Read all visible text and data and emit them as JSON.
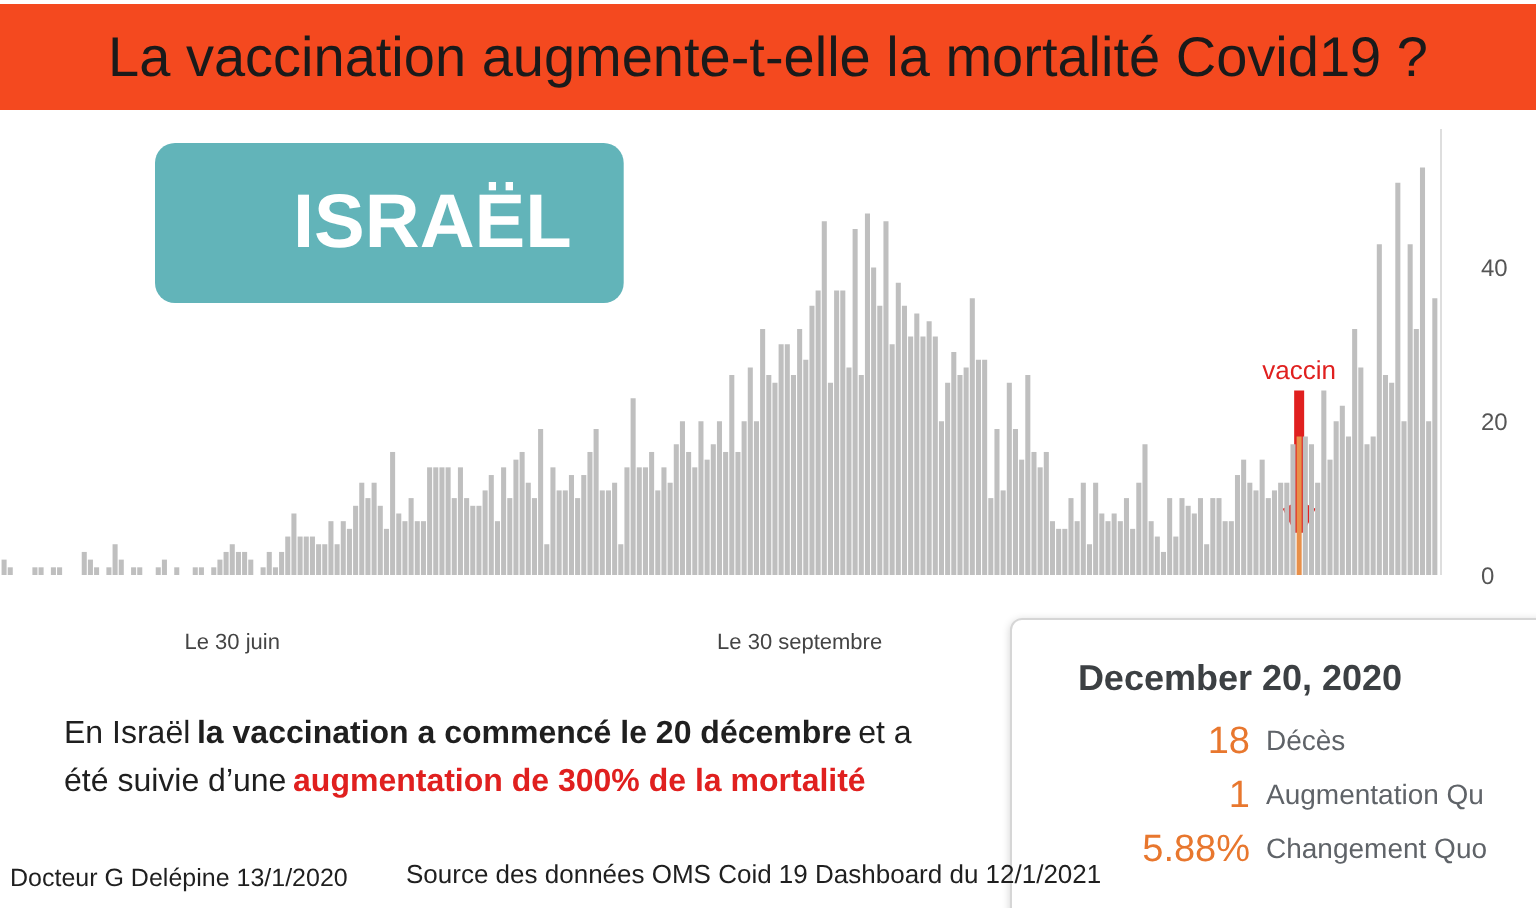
{
  "chart_data": {
    "type": "bar",
    "title": "La vaccination augmente-t-elle la mortalité Covid19 ?",
    "subtitle": "ISRAËL",
    "annotations": [
      {
        "text": "vaccin",
        "x": "2020-12-20",
        "y": 18
      },
      "En Israël",
      "la vaccination a commencé le 20 décembre",
      "et a",
      "été suivie d’une",
      "augmentation de 300% de la mortalité",
      "December 20, 2020",
      "18",
      "Décès",
      "1",
      "Augmentation Qu",
      "5.88%",
      "Changement Quo",
      "Docteur G Delépine 13/1/2020",
      "Source des données OMS Coid 19 Dashboard du 12/1/2021"
    ],
    "x": [
      "2020-05-24",
      "2020-05-25",
      "2020-05-26",
      "2020-05-27",
      "2020-05-28",
      "2020-05-29",
      "2020-05-30",
      "2020-05-31",
      "2020-06-01",
      "2020-06-02",
      "2020-06-03",
      "2020-06-04",
      "2020-06-05",
      "2020-06-06",
      "2020-06-07",
      "2020-06-08",
      "2020-06-09",
      "2020-06-10",
      "2020-06-11",
      "2020-06-12",
      "2020-06-13",
      "2020-06-14",
      "2020-06-15",
      "2020-06-16",
      "2020-06-17",
      "2020-06-18",
      "2020-06-19",
      "2020-06-20",
      "2020-06-21",
      "2020-06-22",
      "2020-06-23",
      "2020-06-24",
      "2020-06-25",
      "2020-06-26",
      "2020-06-27",
      "2020-06-28",
      "2020-06-29",
      "2020-06-30",
      "2020-07-01",
      "2020-07-02",
      "2020-07-03",
      "2020-07-04",
      "2020-07-05",
      "2020-07-06",
      "2020-07-07",
      "2020-07-08",
      "2020-07-09",
      "2020-07-10",
      "2020-07-11",
      "2020-07-12",
      "2020-07-13",
      "2020-07-14",
      "2020-07-15",
      "2020-07-16",
      "2020-07-17",
      "2020-07-18",
      "2020-07-19",
      "2020-07-20",
      "2020-07-21",
      "2020-07-22",
      "2020-07-23",
      "2020-07-24",
      "2020-07-25",
      "2020-07-26",
      "2020-07-27",
      "2020-07-28",
      "2020-07-29",
      "2020-07-30",
      "2020-07-31",
      "2020-08-01",
      "2020-08-02",
      "2020-08-03",
      "2020-08-04",
      "2020-08-05",
      "2020-08-06",
      "2020-08-07",
      "2020-08-08",
      "2020-08-09",
      "2020-08-10",
      "2020-08-11",
      "2020-08-12",
      "2020-08-13",
      "2020-08-14",
      "2020-08-15",
      "2020-08-16",
      "2020-08-17",
      "2020-08-18",
      "2020-08-19",
      "2020-08-20",
      "2020-08-21",
      "2020-08-22",
      "2020-08-23",
      "2020-08-24",
      "2020-08-25",
      "2020-08-26",
      "2020-08-27",
      "2020-08-28",
      "2020-08-29",
      "2020-08-30",
      "2020-08-31",
      "2020-09-01",
      "2020-09-02",
      "2020-09-03",
      "2020-09-04",
      "2020-09-05",
      "2020-09-06",
      "2020-09-07",
      "2020-09-08",
      "2020-09-09",
      "2020-09-10",
      "2020-09-11",
      "2020-09-12",
      "2020-09-13",
      "2020-09-14",
      "2020-09-15",
      "2020-09-16",
      "2020-09-17",
      "2020-09-18",
      "2020-09-19",
      "2020-09-20",
      "2020-09-21",
      "2020-09-22",
      "2020-09-23",
      "2020-09-24",
      "2020-09-25",
      "2020-09-26",
      "2020-09-27",
      "2020-09-28",
      "2020-09-29",
      "2020-09-30",
      "2020-10-01",
      "2020-10-02",
      "2020-10-03",
      "2020-10-04",
      "2020-10-05",
      "2020-10-06",
      "2020-10-07",
      "2020-10-08",
      "2020-10-09",
      "2020-10-10",
      "2020-10-11",
      "2020-10-12",
      "2020-10-13",
      "2020-10-14",
      "2020-10-15",
      "2020-10-16",
      "2020-10-17",
      "2020-10-18",
      "2020-10-19",
      "2020-10-20",
      "2020-10-21",
      "2020-10-22",
      "2020-10-23",
      "2020-10-24",
      "2020-10-25",
      "2020-10-26",
      "2020-10-27",
      "2020-10-28",
      "2020-10-29",
      "2020-10-30",
      "2020-10-31",
      "2020-11-01",
      "2020-11-02",
      "2020-11-03",
      "2020-11-04",
      "2020-11-05",
      "2020-11-06",
      "2020-11-07",
      "2020-11-08",
      "2020-11-09",
      "2020-11-10",
      "2020-11-11",
      "2020-11-12",
      "2020-11-13",
      "2020-11-14",
      "2020-11-15",
      "2020-11-16",
      "2020-11-17",
      "2020-11-18",
      "2020-11-19",
      "2020-11-20",
      "2020-11-21",
      "2020-11-22",
      "2020-11-23",
      "2020-11-24",
      "2020-11-25",
      "2020-11-26",
      "2020-11-27",
      "2020-11-28",
      "2020-11-29",
      "2020-11-30",
      "2020-12-01",
      "2020-12-02",
      "2020-12-03",
      "2020-12-04",
      "2020-12-05",
      "2020-12-06",
      "2020-12-07",
      "2020-12-08",
      "2020-12-09",
      "2020-12-10",
      "2020-12-11",
      "2020-12-12",
      "2020-12-13",
      "2020-12-14",
      "2020-12-15",
      "2020-12-16",
      "2020-12-17",
      "2020-12-18",
      "2020-12-19",
      "2020-12-20",
      "2020-12-21",
      "2020-12-22",
      "2020-12-23",
      "2020-12-24",
      "2020-12-25",
      "2020-12-26",
      "2020-12-27",
      "2020-12-28",
      "2020-12-29",
      "2020-12-30",
      "2020-12-31",
      "2021-01-01",
      "2021-01-02",
      "2021-01-03",
      "2021-01-04",
      "2021-01-05",
      "2021-01-06",
      "2021-01-07",
      "2021-01-08",
      "2021-01-09",
      "2021-01-10",
      "2021-01-11"
    ],
    "values": [
      2,
      1,
      0,
      0,
      0,
      1,
      1,
      0,
      1,
      1,
      0,
      0,
      0,
      3,
      2,
      1,
      0,
      1,
      4,
      2,
      0,
      1,
      1,
      0,
      0,
      1,
      2,
      0,
      1,
      0,
      0,
      1,
      1,
      0,
      1,
      2,
      3,
      4,
      3,
      3,
      2,
      0,
      1,
      3,
      1,
      3,
      5,
      8,
      5,
      5,
      5,
      4,
      4,
      7,
      4,
      7,
      6,
      9,
      12,
      10,
      12,
      9,
      6,
      16,
      8,
      7,
      10,
      7,
      7,
      14,
      14,
      14,
      14,
      10,
      14,
      10,
      9,
      9,
      11,
      13,
      7,
      14,
      10,
      15,
      16,
      12,
      10,
      19,
      4,
      14,
      11,
      11,
      13,
      10,
      13,
      16,
      19,
      11,
      11,
      12,
      4,
      14,
      23,
      14,
      14,
      16,
      11,
      14,
      12,
      17,
      20,
      16,
      14,
      20,
      15,
      17,
      20,
      16,
      26,
      16,
      20,
      27,
      20,
      32,
      26,
      25,
      30,
      30,
      26,
      32,
      28,
      35,
      37,
      46,
      25,
      37,
      37,
      27,
      45,
      26,
      47,
      40,
      35,
      46,
      30,
      38,
      35,
      31,
      34,
      31,
      33,
      31,
      20,
      25,
      29,
      26,
      27,
      36,
      28,
      28,
      10,
      19,
      11,
      25,
      19,
      15,
      26,
      16,
      14,
      16,
      7,
      6,
      6,
      10,
      7,
      12,
      4,
      12,
      8,
      7,
      8,
      7,
      10,
      6,
      12,
      17,
      7,
      5,
      3,
      10,
      5,
      10,
      9,
      8,
      10,
      4,
      10,
      10,
      7,
      7,
      13,
      15,
      12,
      11,
      15,
      10,
      11,
      12,
      12,
      17,
      18,
      18,
      17,
      12,
      24,
      15,
      20,
      22,
      18,
      32,
      27,
      17,
      18,
      43,
      26,
      25,
      51,
      20,
      43,
      32,
      53,
      20,
      36
    ],
    "colors": [
      "#bfbfbf",
      "#bfbfbf",
      "#bfbfbf",
      "#bfbfbf",
      "#bfbfbf",
      "#bfbfbf",
      "#bfbfbf",
      "#bfbfbf",
      "#bfbfbf",
      "#bfbfbf",
      "#bfbfbf",
      "#bfbfbf",
      "#bfbfbf",
      "#bfbfbf",
      "#bfbfbf",
      "#bfbfbf",
      "#bfbfbf",
      "#bfbfbf",
      "#bfbfbf",
      "#bfbfbf",
      "#bfbfbf",
      "#bfbfbf",
      "#bfbfbf",
      "#bfbfbf",
      "#bfbfbf",
      "#bfbfbf",
      "#bfbfbf",
      "#bfbfbf",
      "#bfbfbf",
      "#bfbfbf",
      "#bfbfbf",
      "#bfbfbf",
      "#bfbfbf",
      "#bfbfbf",
      "#bfbfbf",
      "#bfbfbf",
      "#bfbfbf",
      "#bfbfbf",
      "#bfbfbf",
      "#bfbfbf",
      "#bfbfbf",
      "#bfbfbf",
      "#bfbfbf",
      "#bfbfbf",
      "#bfbfbf",
      "#bfbfbf",
      "#bfbfbf",
      "#bfbfbf",
      "#bfbfbf",
      "#bfbfbf",
      "#bfbfbf",
      "#bfbfbf",
      "#bfbfbf",
      "#bfbfbf",
      "#bfbfbf",
      "#bfbfbf",
      "#bfbfbf",
      "#bfbfbf",
      "#bfbfbf",
      "#bfbfbf",
      "#bfbfbf",
      "#bfbfbf",
      "#bfbfbf",
      "#bfbfbf",
      "#bfbfbf",
      "#bfbfbf",
      "#bfbfbf",
      "#bfbfbf",
      "#bfbfbf",
      "#bfbfbf",
      "#bfbfbf",
      "#bfbfbf",
      "#bfbfbf",
      "#bfbfbf",
      "#bfbfbf",
      "#bfbfbf",
      "#bfbfbf",
      "#bfbfbf",
      "#bfbfbf",
      "#bfbfbf",
      "#bfbfbf",
      "#bfbfbf",
      "#bfbfbf",
      "#bfbfbf",
      "#bfbfbf",
      "#bfbfbf",
      "#bfbfbf",
      "#bfbfbf",
      "#bfbfbf",
      "#bfbfbf",
      "#bfbfbf",
      "#bfbfbf",
      "#bfbfbf",
      "#bfbfbf",
      "#bfbfbf",
      "#bfbfbf",
      "#bfbfbf",
      "#bfbfbf",
      "#bfbfbf",
      "#bfbfbf",
      "#bfbfbf",
      "#bfbfbf",
      "#bfbfbf",
      "#bfbfbf",
      "#bfbfbf",
      "#bfbfbf",
      "#bfbfbf",
      "#bfbfbf",
      "#bfbfbf",
      "#bfbfbf",
      "#bfbfbf",
      "#bfbfbf",
      "#bfbfbf",
      "#bfbfbf",
      "#bfbfbf",
      "#bfbfbf",
      "#bfbfbf",
      "#bfbfbf",
      "#bfbfbf",
      "#bfbfbf",
      "#bfbfbf",
      "#bfbfbf",
      "#bfbfbf",
      "#bfbfbf",
      "#bfbfbf",
      "#bfbfbf",
      "#bfbfbf",
      "#bfbfbf",
      "#bfbfbf",
      "#bfbfbf",
      "#bfbfbf",
      "#bfbfbf",
      "#bfbfbf",
      "#bfbfbf",
      "#bfbfbf",
      "#bfbfbf",
      "#bfbfbf",
      "#bfbfbf",
      "#bfbfbf",
      "#bfbfbf",
      "#bfbfbf",
      "#bfbfbf",
      "#bfbfbf",
      "#bfbfbf",
      "#bfbfbf",
      "#bfbfbf",
      "#bfbfbf",
      "#bfbfbf",
      "#bfbfbf",
      "#bfbfbf",
      "#bfbfbf",
      "#bfbfbf",
      "#bfbfbf",
      "#bfbfbf",
      "#bfbfbf",
      "#bfbfbf",
      "#bfbfbf",
      "#bfbfbf",
      "#bfbfbf",
      "#bfbfbf",
      "#bfbfbf",
      "#bfbfbf",
      "#bfbfbf",
      "#bfbfbf",
      "#bfbfbf",
      "#bfbfbf",
      "#bfbfbf",
      "#bfbfbf",
      "#bfbfbf",
      "#bfbfbf",
      "#bfbfbf",
      "#bfbfbf",
      "#bfbfbf",
      "#bfbfbf",
      "#bfbfbf",
      "#bfbfbf",
      "#bfbfbf",
      "#bfbfbf",
      "#bfbfbf",
      "#bfbfbf",
      "#bfbfbf",
      "#bfbfbf",
      "#bfbfbf",
      "#bfbfbf",
      "#bfbfbf",
      "#bfbfbf",
      "#bfbfbf",
      "#bfbfbf",
      "#bfbfbf",
      "#bfbfbf",
      "#bfbfbf",
      "#bfbfbf",
      "#bfbfbf",
      "#bfbfbf",
      "#bfbfbf",
      "#bfbfbf",
      "#bfbfbf",
      "#bfbfbf",
      "#bfbfbf",
      "#bfbfbf",
      "#bfbfbf",
      "#bfbfbf",
      "#bfbfbf",
      "#bfbfbf",
      "#bfbfbf",
      "#bfbfbf",
      "#bfbfbf",
      "#bfbfbf",
      "#bfbfbf",
      "#bfbfbf",
      "#e8904a",
      "#bfbfbf",
      "#bfbfbf",
      "#bfbfbf",
      "#bfbfbf",
      "#bfbfbf",
      "#bfbfbf",
      "#bfbfbf",
      "#bfbfbf",
      "#bfbfbf",
      "#bfbfbf",
      "#bfbfbf",
      "#bfbfbf",
      "#bfbfbf",
      "#bfbfbf",
      "#bfbfbf",
      "#bfbfbf",
      "#bfbfbf",
      "#bfbfbf",
      "#bfbfbf",
      "#bfbfbf",
      "#bfbfbf",
      "#bfbfbf"
    ],
    "xlim": [
      "2020-05-23T12:00",
      "2021-01-12"
    ],
    "xticks": [
      {
        "value": "2020-06-30",
        "label": "Le 30 juin"
      },
      {
        "value": "2020-09-30",
        "label": "Le 30 septembre"
      }
    ],
    "ylim": [
      0,
      58
    ],
    "yticks": [
      0,
      20,
      40
    ]
  }
}
